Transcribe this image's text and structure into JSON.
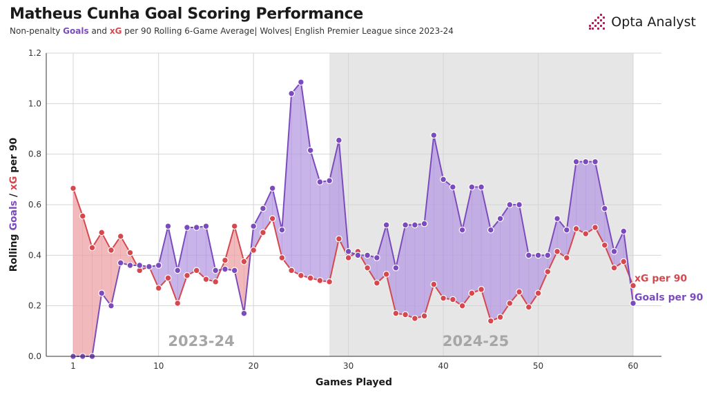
{
  "header": {
    "title": "Matheus Cunha Goal Scoring Performance",
    "subtitle_pre": "Non-penalty ",
    "subtitle_goals": "Goals",
    "subtitle_and": " and ",
    "subtitle_xg": "xG",
    "subtitle_post": " per 90 Rolling 6-Game Average| Wolves| English Premier League since 2023-24"
  },
  "logo": {
    "text": "Opta Analyst",
    "icon": "opta-bars-icon"
  },
  "colors": {
    "goals": "#7b4bbd",
    "xg": "#d4484e",
    "goals_fill": "#b69be0",
    "xg_fill": "#eea2a5",
    "season_band": "#e6e6e6"
  },
  "chart_data": {
    "type": "line",
    "xlabel": "Games Played",
    "ylabel_pre": "Rolling ",
    "ylabel_goals": "Goals",
    "ylabel_sep": " / ",
    "ylabel_xg": "xG",
    "ylabel_post": " per 90",
    "xlim": [
      1,
      60
    ],
    "ylim": [
      0,
      1.2
    ],
    "xticks": [
      1,
      10,
      20,
      30,
      40,
      50,
      60
    ],
    "yticks": [
      0.0,
      0.2,
      0.4,
      0.6,
      0.8,
      1.0,
      1.2
    ],
    "ytick_labels": [
      "0.0",
      "0.2",
      "0.4",
      "0.6",
      "0.8",
      "1.0",
      "1.2"
    ],
    "seasons": [
      {
        "label": "2023-24",
        "start": 1,
        "end": 28,
        "shaded": false
      },
      {
        "label": "2024-25",
        "start": 28,
        "end": 60,
        "shaded": true
      }
    ],
    "series": [
      {
        "name": "Goals per 90",
        "key": "goals",
        "values": [
          0.0,
          0.0,
          0.0,
          0.25,
          0.2,
          0.37,
          0.36,
          0.36,
          0.355,
          0.36,
          0.515,
          0.34,
          0.51,
          0.51,
          0.515,
          0.34,
          0.345,
          0.34,
          0.17,
          0.515,
          0.585,
          0.665,
          0.5,
          1.04,
          1.085,
          0.815,
          0.69,
          0.695,
          0.855,
          0.415,
          0.4,
          0.4,
          0.39,
          0.52,
          0.35,
          0.52,
          0.52,
          0.525,
          0.875,
          0.7,
          0.67,
          0.5,
          0.67,
          0.67,
          0.5,
          0.545,
          0.6,
          0.6,
          0.4,
          0.4,
          0.4,
          0.545,
          0.5,
          0.77,
          0.77,
          0.77,
          0.585,
          0.415,
          0.495,
          0.21
        ]
      },
      {
        "name": "xG per 90",
        "key": "xg",
        "values": [
          0.665,
          0.555,
          0.43,
          0.49,
          0.42,
          0.475,
          0.41,
          0.34,
          0.355,
          0.27,
          0.31,
          0.21,
          0.32,
          0.34,
          0.305,
          0.295,
          0.38,
          0.515,
          0.375,
          0.42,
          0.49,
          0.545,
          0.39,
          0.34,
          0.32,
          0.31,
          0.3,
          0.295,
          0.465,
          0.39,
          0.415,
          0.35,
          0.29,
          0.325,
          0.17,
          0.165,
          0.15,
          0.16,
          0.285,
          0.23,
          0.225,
          0.2,
          0.25,
          0.265,
          0.14,
          0.155,
          0.21,
          0.255,
          0.195,
          0.25,
          0.335,
          0.415,
          0.39,
          0.505,
          0.485,
          0.51,
          0.44,
          0.35,
          0.375,
          0.28
        ]
      }
    ]
  }
}
